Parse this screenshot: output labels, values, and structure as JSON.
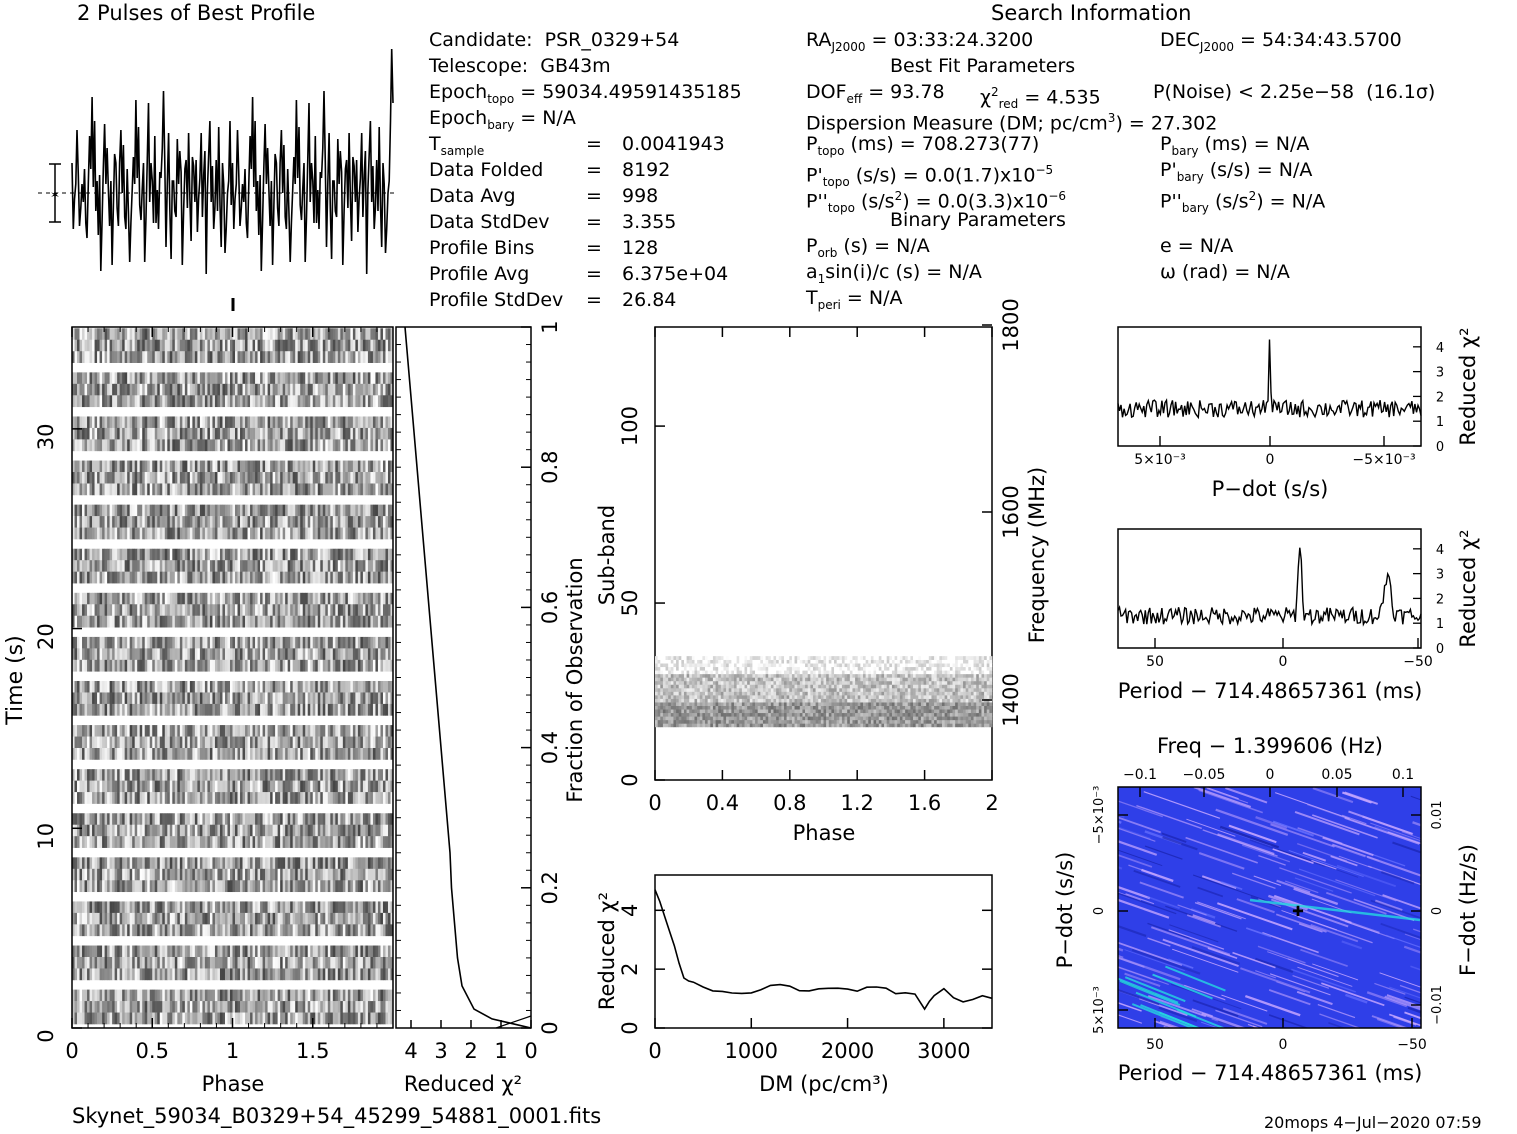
{
  "profile": {
    "title": "2 Pulses of Best Profile",
    "values": [
      1,
      -1.2,
      -0.2,
      0.3,
      2.1,
      0.6,
      -1.1,
      -0.5,
      0.3,
      -0.3,
      0.8,
      -1.0,
      -1.5,
      0.3,
      1.9,
      0.8,
      3.2,
      0.2,
      2.4,
      -0.6,
      0.4,
      -1.4,
      0.6,
      -2.6,
      -0.9,
      0.8,
      2.3,
      0.3,
      1.5,
      0.1,
      -1.1,
      0.4,
      -2.4,
      -0.4,
      1.3,
      1.0,
      -0.5,
      -1.1,
      1.0,
      2.1,
      0.0,
      1.6,
      -0.8,
      -1.2,
      0.8,
      -0.6,
      -2.3,
      -1.0,
      0.1,
      1.2,
      0.3,
      3.1,
      0.5,
      2.2,
      -0.4,
      -0.9,
      0.1,
      1.0,
      -2.3,
      -0.8,
      1.0,
      3.0,
      -0.3,
      1.0,
      0.4,
      -1.0,
      1.9,
      -1.0,
      0.1,
      -1.2,
      0.7,
      0.5,
      1.5,
      3.4,
      1.0,
      -1.8,
      0.3,
      2.0,
      -0.5,
      -2.2,
      0.4,
      0.4,
      -0.6,
      -0.8,
      1.8,
      0.3,
      1.4,
      0.7,
      -2.4,
      -0.6,
      0.8,
      1.1,
      -0.5,
      2.0,
      -0.2,
      -1.6,
      1.2,
      0.9,
      -0.3,
      1.1,
      -1.3,
      -0.2,
      0.5,
      2.0,
      -0.8,
      0.6,
      1.4,
      -2.7,
      0.1,
      1.3,
      2.4,
      -0.3,
      0.9,
      -1.2,
      -0.5,
      1.1,
      -0.6,
      2.2,
      -0.4,
      -1.8,
      1.0,
      0.3,
      -2.0,
      -1.2,
      0.0,
      0.4,
      2.4,
      -0.4,
      1.0,
      -1.2,
      -0.2,
      0.3,
      2.1,
      0.6,
      -1.1,
      -0.5,
      0.3,
      -0.3,
      0.8,
      -1.0,
      -1.5,
      0.3,
      1.9,
      0.8,
      3.2,
      0.2,
      2.4,
      -0.6,
      0.4,
      -1.4,
      0.6,
      -2.6,
      -0.9,
      0.8,
      2.3,
      0.3,
      1.5,
      0.1,
      -1.1,
      0.4,
      -2.4,
      -0.4,
      1.3,
      1.0,
      -0.5,
      -1.1,
      1.0,
      2.1,
      0.0,
      1.6,
      -0.8,
      -1.2,
      0.8,
      -0.6,
      -2.3,
      -1.0,
      0.1,
      1.2,
      0.3,
      3.1,
      0.5,
      2.2,
      -0.4,
      -0.9,
      0.1,
      1.0,
      -2.3,
      -0.8,
      1.0,
      3.0,
      -0.3,
      1.0,
      0.4,
      -1.0,
      1.9,
      -1.0,
      0.1,
      -1.2,
      0.7,
      0.5,
      1.5,
      3.4,
      1.0,
      -1.8,
      0.3,
      2.0,
      -0.5,
      -2.2,
      0.4,
      0.4,
      -0.6,
      -0.8,
      1.8,
      0.3,
      1.4,
      0.7,
      -2.4,
      -0.6,
      0.8,
      1.1,
      -0.5,
      2.0,
      -0.2,
      -1.6,
      1.2,
      0.9,
      -0.3,
      1.1,
      -1.3,
      -0.2,
      0.5,
      2.0,
      -0.8,
      0.6,
      1.4,
      -2.7,
      0.1,
      1.3,
      2.4,
      -0.3,
      0.9,
      -1.2,
      -0.5,
      1.1,
      -0.6,
      2.2,
      -0.4,
      -1.8,
      1.0,
      0.3,
      -2.0,
      -1.2,
      0.0,
      0.4,
      2.4,
      4.8,
      3.0
    ]
  },
  "info": {
    "search_title": "Search Information",
    "candidate": {
      "label": "Candidate:",
      "value": "PSR_0329+54"
    },
    "telescope": {
      "label": "Telescope:",
      "value": "GB43m"
    },
    "epoch_topo": {
      "pre": "Epoch",
      "sub": "topo",
      "value": " = 59034.49591435185"
    },
    "epoch_bary": {
      "pre": "Epoch",
      "sub": "bary",
      "value": " = N/A"
    },
    "stats": [
      {
        "label": "T",
        "sub": "sample",
        "value": "0.0041943"
      },
      {
        "label": "Data Folded",
        "sub": "",
        "value": "8192"
      },
      {
        "label": "Data Avg",
        "sub": "",
        "value": "998"
      },
      {
        "label": "Data StdDev",
        "sub": "",
        "value": "3.355"
      },
      {
        "label": "Profile Bins",
        "sub": "",
        "value": "128"
      },
      {
        "label": "Profile Avg",
        "sub": "",
        "value": "6.375e+04"
      },
      {
        "label": "Profile StdDev",
        "sub": "",
        "value": "26.84"
      }
    ],
    "eq": "=",
    "ra": {
      "pre": "RA",
      "sub": "J2000",
      "value": " = 03:33:24.3200"
    },
    "dec": {
      "pre": "DEC",
      "sub": "J2000",
      "value": " = 54:34:43.5700"
    },
    "best_fit_title": "Best Fit Parameters",
    "dof": {
      "pre": "DOF",
      "sub": "eff",
      "value": " = 93.78"
    },
    "chi": {
      "pre": "χ",
      "sup": "2",
      "sub": "red",
      "value": " = 4.535"
    },
    "pnoise": {
      "text": "P(Noise) < 2.25e−58",
      "sigma": "(16.1σ)"
    },
    "dm": {
      "text": "Dispersion Measure (DM; pc/cm",
      "sup": "3",
      "tail": ") = 27.302"
    },
    "ptopo": {
      "pre": "P",
      "sub": "topo",
      "value": " (ms) =  708.273(77)"
    },
    "pbary": {
      "pre": "P",
      "sub": "bary",
      "value": " (ms) = N/A"
    },
    "pdtopo": {
      "pre": "P'",
      "sub": "topo",
      "value": " (s/s) = 0.0(1.7)x10",
      "sup": "−5"
    },
    "pdbary": {
      "pre": "P'",
      "sub": "bary",
      "value": " (s/s) = N/A"
    },
    "pddtopo": {
      "pre": "P''",
      "sub": "topo",
      "value": " (s/s",
      "sup": "2",
      "tail": ") = 0.0(3.3)x10",
      "sup2": "−6"
    },
    "pddbary": {
      "pre": "P''",
      "sub": "bary",
      "value": " (s/s",
      "sup": "2",
      "tail": ") = N/A"
    },
    "binary_title": "Binary Parameters",
    "porb": {
      "pre": "P",
      "sub": "orb",
      "value": " (s) = N/A"
    },
    "e": "e = N/A",
    "a1": {
      "pre": "a",
      "sub": "1",
      "value": "sin(i)/c (s) = N/A"
    },
    "omega": "ω (rad) = N/A",
    "tperi": {
      "pre": "T",
      "sub": "peri",
      "value": " = N/A"
    }
  },
  "chart_data": [
    {
      "type": "heatmap",
      "name": "time-phase",
      "xlabel": "Phase",
      "ylabel": "Time (s)",
      "xlim": [
        0,
        2
      ],
      "ylim": [
        0,
        35.1
      ],
      "x_ticks": [
        "0",
        "0.5",
        "1",
        "1.5"
      ],
      "y_ticks": [
        "0",
        "10",
        "20",
        "30"
      ]
    },
    {
      "type": "line",
      "name": "chi-vs-time",
      "xlabel": "Reduced χ²",
      "xlim": [
        4.5,
        0
      ],
      "x_ticks": [
        "4",
        "3",
        "2",
        "1",
        "0"
      ],
      "ylabel": "Fraction of Observation",
      "y_ticks": [
        "0",
        "0.2",
        "0.4",
        "0.6",
        "0.8",
        "1"
      ],
      "points": [
        [
          0,
          0.0
        ],
        [
          1.3,
          0.013
        ],
        [
          1.9,
          0.027
        ],
        [
          2.3,
          0.06
        ],
        [
          2.45,
          0.1
        ],
        [
          2.55,
          0.15
        ],
        [
          2.65,
          0.2
        ],
        [
          2.7,
          0.25
        ],
        [
          2.8,
          0.3
        ],
        [
          2.9,
          0.35
        ],
        [
          3.0,
          0.4
        ],
        [
          3.1,
          0.45
        ],
        [
          3.2,
          0.5
        ],
        [
          3.3,
          0.55
        ],
        [
          3.4,
          0.6
        ],
        [
          3.5,
          0.65
        ],
        [
          3.6,
          0.7
        ],
        [
          3.7,
          0.75
        ],
        [
          3.8,
          0.8
        ],
        [
          3.9,
          0.85
        ],
        [
          4.0,
          0.9
        ],
        [
          4.1,
          0.95
        ],
        [
          4.2,
          1.0
        ]
      ]
    },
    {
      "type": "heatmap",
      "name": "subband-phase",
      "xlabel": "Phase",
      "ylabel": "Sub-band",
      "y2label": "Frequency (MHz)",
      "xlim": [
        0,
        2
      ],
      "ylim": [
        0,
        128
      ],
      "x_ticks": [
        "0",
        "0.4",
        "0.8",
        "1.2",
        "1.6",
        "2"
      ],
      "y_ticks": [
        "0",
        "50",
        "100"
      ],
      "y2_ticks": [
        "1400",
        "1600",
        "1800"
      ],
      "active_subbands": [
        15,
        35
      ]
    },
    {
      "type": "line",
      "name": "chi-vs-dm",
      "xlabel": "DM (pc/cm³)",
      "ylabel": "Reduced χ²",
      "xlim": [
        0,
        3500
      ],
      "ylim": [
        0,
        5.2
      ],
      "x_ticks": [
        "0",
        "1000",
        "2000",
        "3000"
      ],
      "y_ticks": [
        "0",
        "2",
        "4"
      ],
      "points": [
        [
          0,
          4.7
        ],
        [
          50,
          4.3
        ],
        [
          100,
          3.8
        ],
        [
          150,
          3.3
        ],
        [
          200,
          2.8
        ],
        [
          250,
          2.2
        ],
        [
          300,
          1.7
        ],
        [
          350,
          1.6
        ],
        [
          400,
          1.5
        ],
        [
          500,
          1.4
        ],
        [
          600,
          1.3
        ],
        [
          700,
          1.25
        ],
        [
          800,
          1.2
        ],
        [
          900,
          1.15
        ],
        [
          1000,
          1.2
        ],
        [
          1100,
          1.3
        ],
        [
          1200,
          1.45
        ],
        [
          1300,
          1.5
        ],
        [
          1400,
          1.4
        ],
        [
          1500,
          1.3
        ],
        [
          1600,
          1.25
        ],
        [
          1700,
          1.3
        ],
        [
          1800,
          1.35
        ],
        [
          1900,
          1.4
        ],
        [
          2000,
          1.3
        ],
        [
          2100,
          1.2
        ],
        [
          2200,
          1.35
        ],
        [
          2300,
          1.4
        ],
        [
          2400,
          1.3
        ],
        [
          2500,
          1.2
        ],
        [
          2600,
          1.25
        ],
        [
          2700,
          1.1
        ],
        [
          2800,
          0.7
        ],
        [
          2850,
          0.9
        ],
        [
          2900,
          1.1
        ],
        [
          3000,
          1.3
        ],
        [
          3100,
          1.0
        ],
        [
          3200,
          0.9
        ],
        [
          3300,
          1.0
        ],
        [
          3400,
          1.05
        ],
        [
          3500,
          1.0
        ]
      ]
    },
    {
      "type": "line",
      "name": "chi-vs-pdot",
      "xlabel": "P−dot (s/s)",
      "ylabel": "Reduced χ²",
      "y_ticks": [
        "0",
        "1",
        "2",
        "3",
        "4"
      ],
      "x_ticks": [
        "5×10⁻³",
        "0",
        "−5×10⁻³"
      ],
      "peak": {
        "x": 0,
        "y": 4.5
      },
      "baseline": 1.5
    },
    {
      "type": "line",
      "name": "chi-vs-period",
      "xlabel": "Period − 714.48657361 (ms)",
      "ylabel": "Reduced χ²",
      "y_ticks": [
        "0",
        "1",
        "2",
        "3",
        "4"
      ],
      "x_ticks": [
        "50",
        "0",
        "−50"
      ],
      "peaks": [
        {
          "x": -7,
          "y": 4.5
        },
        {
          "x": -40,
          "y": 3.1
        }
      ],
      "baseline": 1.3
    },
    {
      "type": "heatmap",
      "name": "pdot-period",
      "title": "Freq − 1.399606 (Hz)",
      "xlabel": "Period − 714.48657361 (ms)",
      "ylabel": "P−dot (s/s)",
      "y2label": "F−dot (Hz/s)",
      "x_ticks": [
        "50",
        "0",
        "−50"
      ],
      "x2_ticks": [
        "−0.1",
        "−0.05",
        "0",
        "0.05",
        "0.1"
      ],
      "y_ticks": [
        "−5×10⁻³",
        "0",
        "5×10⁻³"
      ],
      "y2_ticks": [
        "0.01",
        "0",
        "−0.01"
      ],
      "colors": {
        "background": "#2f3fe8",
        "streak": "#c6a6ff",
        "highlight": "#25d8e0"
      }
    }
  ],
  "footer": {
    "filename": "Skynet_59034_B0329+54_45299_54881_0001.fits",
    "stamp": "20mops   4−Jul−2020 07:59"
  }
}
